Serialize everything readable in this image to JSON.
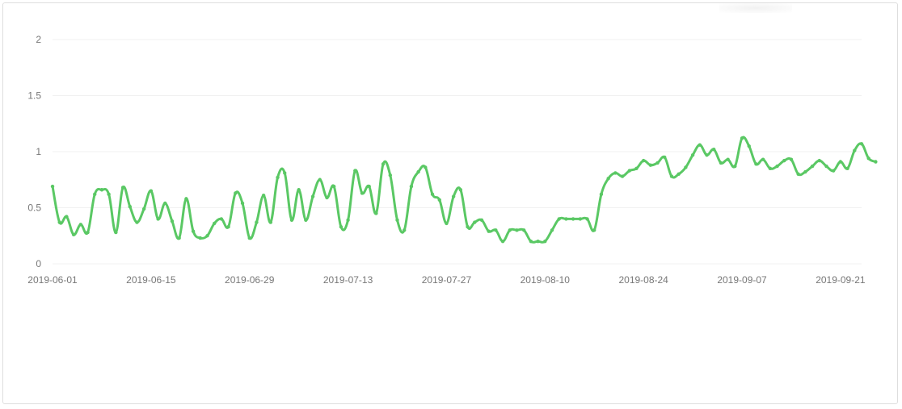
{
  "chart_data": {
    "type": "line",
    "title": "",
    "xlabel": "",
    "ylabel": "",
    "x_start": "2019-06-01",
    "x_end": "2019-09-24",
    "x_tick_labels": [
      "2019-06-01",
      "2019-06-15",
      "2019-06-29",
      "2019-07-13",
      "2019-07-27",
      "2019-08-10",
      "2019-08-24",
      "2019-09-07",
      "2019-09-21"
    ],
    "y_ticks": [
      "0",
      "0.5",
      "1",
      "1.5",
      "2"
    ],
    "ylim": [
      0,
      2
    ],
    "grid": true,
    "line_color": "#5ac864",
    "series": [
      {
        "values": [
          0.69,
          0.37,
          0.42,
          0.26,
          0.35,
          0.28,
          0.62,
          0.66,
          0.62,
          0.28,
          0.68,
          0.51,
          0.37,
          0.49,
          0.65,
          0.4,
          0.54,
          0.38,
          0.23,
          0.58,
          0.29,
          0.23,
          0.25,
          0.36,
          0.4,
          0.33,
          0.63,
          0.54,
          0.23,
          0.37,
          0.61,
          0.37,
          0.77,
          0.81,
          0.39,
          0.66,
          0.39,
          0.6,
          0.75,
          0.59,
          0.69,
          0.33,
          0.39,
          0.83,
          0.63,
          0.69,
          0.45,
          0.89,
          0.79,
          0.39,
          0.3,
          0.69,
          0.82,
          0.86,
          0.62,
          0.57,
          0.36,
          0.6,
          0.66,
          0.33,
          0.37,
          0.39,
          0.29,
          0.3,
          0.2,
          0.3,
          0.3,
          0.3,
          0.2,
          0.2,
          0.2,
          0.3,
          0.4,
          0.4,
          0.4,
          0.4,
          0.4,
          0.3,
          0.62,
          0.76,
          0.81,
          0.78,
          0.83,
          0.85,
          0.92,
          0.88,
          0.9,
          0.95,
          0.78,
          0.8,
          0.86,
          0.97,
          1.06,
          0.97,
          1.02,
          0.9,
          0.93,
          0.87,
          1.12,
          1.05,
          0.89,
          0.93,
          0.85,
          0.87,
          0.92,
          0.93,
          0.8,
          0.82,
          0.87,
          0.92,
          0.87,
          0.83,
          0.91,
          0.85,
          1.01,
          1.07,
          0.94,
          0.91
        ]
      }
    ]
  }
}
